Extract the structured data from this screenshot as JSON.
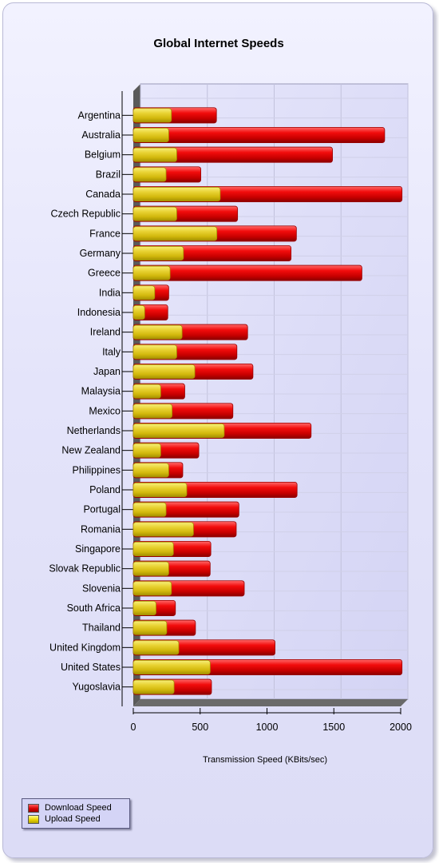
{
  "chart_data": {
    "type": "bar",
    "orientation": "horizontal",
    "title": "Global Internet Speeds",
    "xlabel": "Transmission Speed (KBits/sec)",
    "xlim": [
      0,
      2000
    ],
    "xticks": [
      0,
      500,
      1000,
      1500,
      2000
    ],
    "grid": true,
    "legend_position": "bottom-left",
    "categories": [
      "Argentina",
      "Australia",
      "Belgium",
      "Brazil",
      "Canada",
      "Czech Republic",
      "France",
      "Germany",
      "Greece",
      "India",
      "Indonesia",
      "Ireland",
      "Italy",
      "Japan",
      "Malaysia",
      "Mexico",
      "Netherlands",
      "New Zealand",
      "Philippines",
      "Poland",
      "Portugal",
      "Romania",
      "Singapore",
      "Slovak Republic",
      "Slovenia",
      "South Africa",
      "Thailand",
      "United Kingdom",
      "United States",
      "Yugoslavia"
    ],
    "series": [
      {
        "name": "Download Speed",
        "color": "#dd0000",
        "values": [
          622,
          1880,
          1490,
          505,
          2010,
          780,
          1220,
          1180,
          1710,
          265,
          258,
          855,
          775,
          895,
          385,
          745,
          1330,
          490,
          370,
          1225,
          790,
          770,
          580,
          575,
          830,
          315,
          465,
          1060,
          2010,
          585
        ]
      },
      {
        "name": "Upload Speed",
        "color": "#e2cc1a",
        "values": [
          285,
          265,
          325,
          245,
          650,
          325,
          625,
          375,
          275,
          160,
          85,
          365,
          325,
          460,
          205,
          290,
          680,
          205,
          265,
          400,
          245,
          450,
          300,
          265,
          285,
          170,
          250,
          340,
          575,
          305
        ]
      }
    ]
  }
}
